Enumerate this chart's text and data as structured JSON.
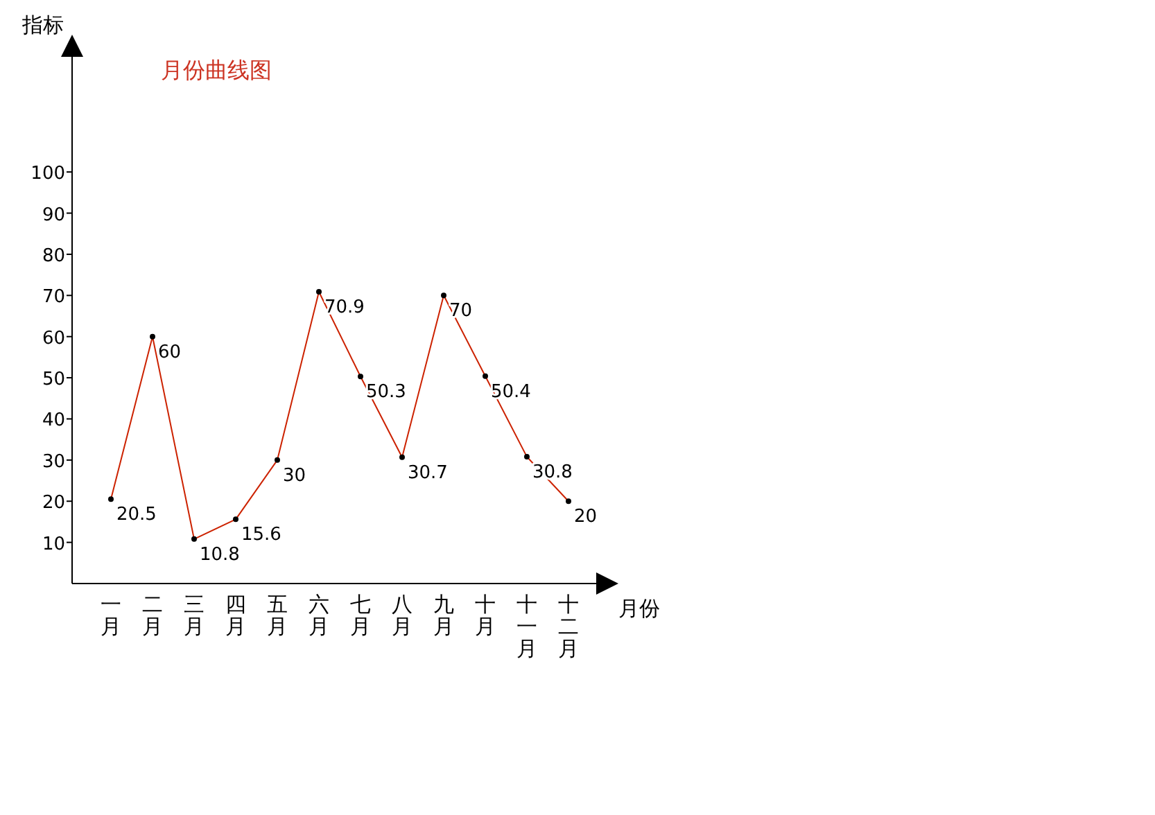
{
  "chart_data": {
    "type": "line",
    "title": "月份曲线图",
    "xlabel": "月份",
    "ylabel": "指标",
    "categories": [
      "一月",
      "二月",
      "三月",
      "四月",
      "五月",
      "六月",
      "七月",
      "八月",
      "九月",
      "十月",
      "十一月",
      "十二月"
    ],
    "series": [
      {
        "color": "#cc2200",
        "values": [
          20.5,
          60,
          10.8,
          15.6,
          30,
          70.9,
          50.3,
          30.7,
          70,
          50.4,
          30.8,
          20
        ]
      }
    ],
    "ylim": [
      0,
      130
    ],
    "yticks": [
      10,
      20,
      30,
      40,
      50,
      60,
      70,
      80,
      90,
      100
    ],
    "data_labels": true,
    "marker": "circle",
    "line_style": "solid",
    "grid": false
  }
}
